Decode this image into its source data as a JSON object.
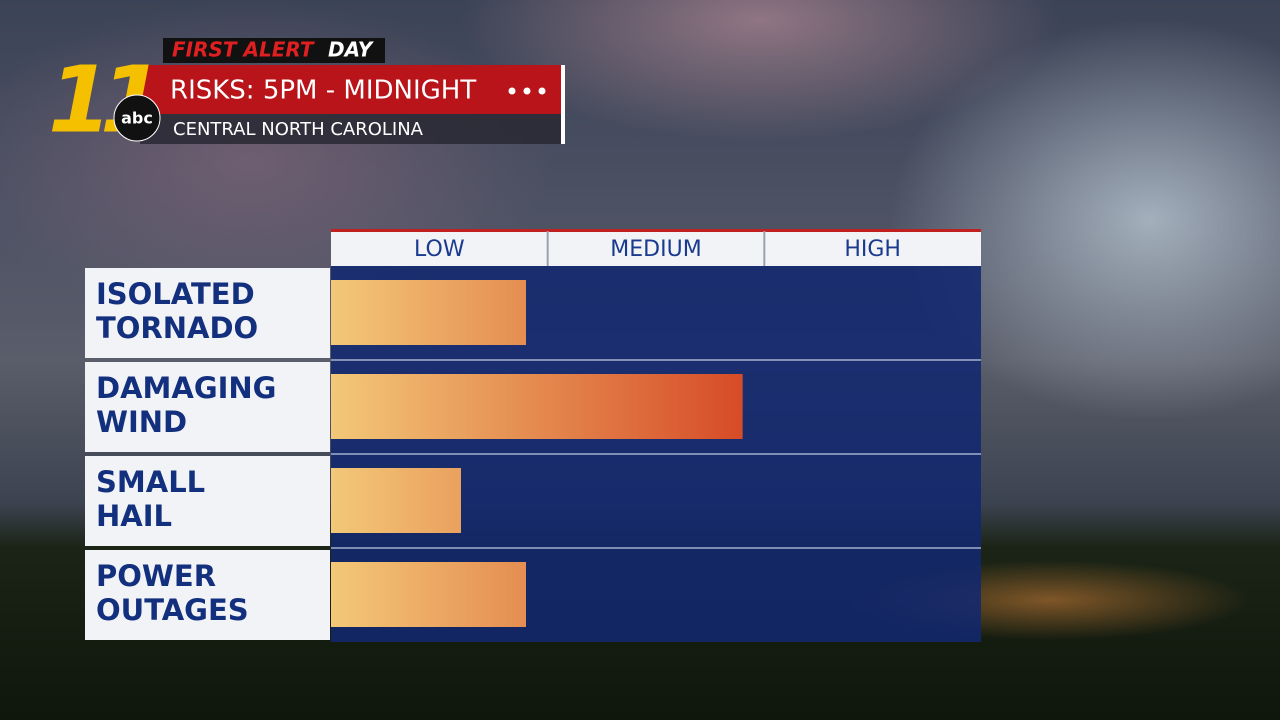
{
  "branding": {
    "station": "11",
    "network": "abc",
    "show": "FIRST ALERT",
    "day": "DAY"
  },
  "chart_data": {
    "type": "bar",
    "orientation": "horizontal",
    "title": "RISKS: 5PM - MIDNIGHT",
    "subtitle": "CENTRAL NORTH CAROLINA",
    "categories": [
      [
        "ISOLATED",
        "TORNADO"
      ],
      [
        "DAMAGING",
        "WIND"
      ],
      [
        "SMALL",
        "HAIL"
      ],
      [
        "POWER",
        "OUTAGES"
      ]
    ],
    "values": [
      0.9,
      1.9,
      0.6,
      0.9
    ],
    "xlim": [
      0,
      3
    ],
    "xticks": [
      {
        "value": 0.5,
        "label": "LOW"
      },
      {
        "value": 1.5,
        "label": "MEDIUM"
      },
      {
        "value": 2.5,
        "label": "HIGH"
      }
    ],
    "colors": [
      "#f3c878",
      "#d23a1c"
    ]
  }
}
